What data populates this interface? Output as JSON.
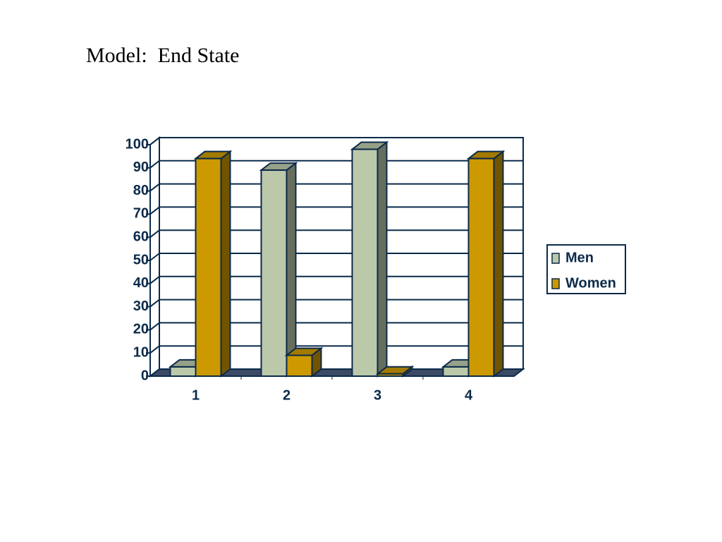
{
  "chart_data": {
    "type": "bar3d",
    "title": "Model:  End State",
    "categories": [
      "1",
      "2",
      "3",
      "4"
    ],
    "series": [
      {
        "name": "Men",
        "color": "#bcc8aa",
        "values": [
          4,
          89,
          98,
          4
        ]
      },
      {
        "name": "Women",
        "color": "#cc9900",
        "values": [
          94,
          9,
          1,
          94
        ]
      }
    ],
    "ylim": [
      0,
      100
    ],
    "yticks": [
      0,
      10,
      20,
      30,
      40,
      50,
      60,
      70,
      80,
      90,
      100
    ],
    "grid": true,
    "legend": "right"
  }
}
